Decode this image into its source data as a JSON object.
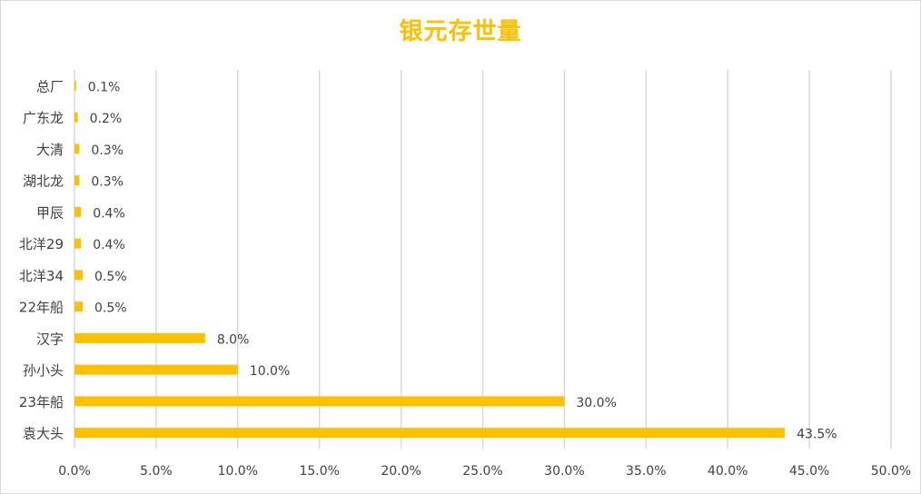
{
  "chart_data": {
    "type": "bar",
    "orientation": "horizontal",
    "title": "银元存世量",
    "categories": [
      "总厂",
      "广东龙",
      "大清",
      "湖北龙",
      "甲辰",
      "北洋29",
      "北洋34",
      "22年船",
      "汉字",
      "孙小头",
      "23年船",
      "袁大头"
    ],
    "values": [
      0.1,
      0.2,
      0.3,
      0.3,
      0.4,
      0.4,
      0.5,
      0.5,
      8.0,
      10.0,
      30.0,
      43.5
    ],
    "data_labels": [
      "0.1%",
      "0.2%",
      "0.3%",
      "0.3%",
      "0.4%",
      "0.4%",
      "0.5%",
      "0.5%",
      "8.0%",
      "10.0%",
      "30.0%",
      "43.5%"
    ],
    "x_ticks": [
      "0.0%",
      "5.0%",
      "10.0%",
      "15.0%",
      "20.0%",
      "25.0%",
      "30.0%",
      "35.0%",
      "40.0%",
      "45.0%",
      "50.0%"
    ],
    "xlim": [
      0,
      50
    ],
    "x_unit": "%",
    "grid": "vertical",
    "legend": "none",
    "bar_color": "#ffc000",
    "title_color": "#ffc000",
    "grid_color": "#d9d9d9",
    "label_color": "#404040"
  }
}
